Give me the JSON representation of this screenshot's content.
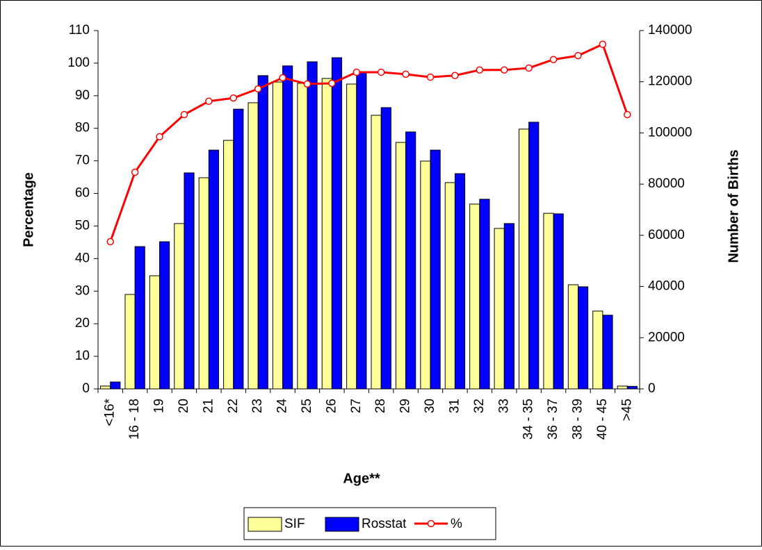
{
  "chart_data": {
    "type": "bar",
    "x_label": "Age**",
    "y_label": "Percentage",
    "y2_label": "Number of Births",
    "categories": [
      "<16*",
      "16 - 18",
      "19",
      "20",
      "21",
      "22",
      "23",
      "24",
      "25",
      "26",
      "27",
      "28",
      "29",
      "30",
      "31",
      "32",
      "33",
      "34 - 35",
      "36 - 37",
      "38 - 39",
      "40 - 45",
      ">45"
    ],
    "series": [
      {
        "name": "SIF",
        "color": "#ffff99",
        "axis": "y2",
        "values": [
          1100,
          36900,
          44200,
          64600,
          82500,
          97100,
          111800,
          119900,
          119400,
          121300,
          119100,
          106900,
          96300,
          89000,
          80600,
          72200,
          62700,
          101500,
          68600,
          40700,
          30400,
          1100
        ]
      },
      {
        "name": "Rosstat",
        "color": "#0000ff",
        "axis": "y2",
        "values": [
          2700,
          55600,
          57500,
          84400,
          93300,
          109300,
          122400,
          126200,
          127800,
          129400,
          123700,
          109900,
          100400,
          93300,
          84100,
          74100,
          64600,
          104200,
          68400,
          39900,
          28800,
          1000
        ]
      },
      {
        "name": "%",
        "color": "#ff0000",
        "type": "line",
        "values": [
          45.2,
          66.5,
          77.4,
          84.2,
          88.3,
          89.3,
          92.1,
          95.5,
          93.6,
          93.8,
          97.2,
          97.2,
          96.6,
          95.7,
          96.2,
          97.9,
          97.9,
          98.5,
          101.1,
          102.3,
          105.8,
          84.2
        ]
      }
    ],
    "ylim": [
      0,
      110
    ],
    "yticks": [
      0,
      10,
      20,
      30,
      40,
      50,
      60,
      70,
      80,
      90,
      100,
      110
    ],
    "y2lim": [
      0,
      140000
    ],
    "y2ticks": [
      0,
      20000,
      40000,
      60000,
      80000,
      100000,
      120000,
      140000
    ],
    "legend": "bottom"
  }
}
